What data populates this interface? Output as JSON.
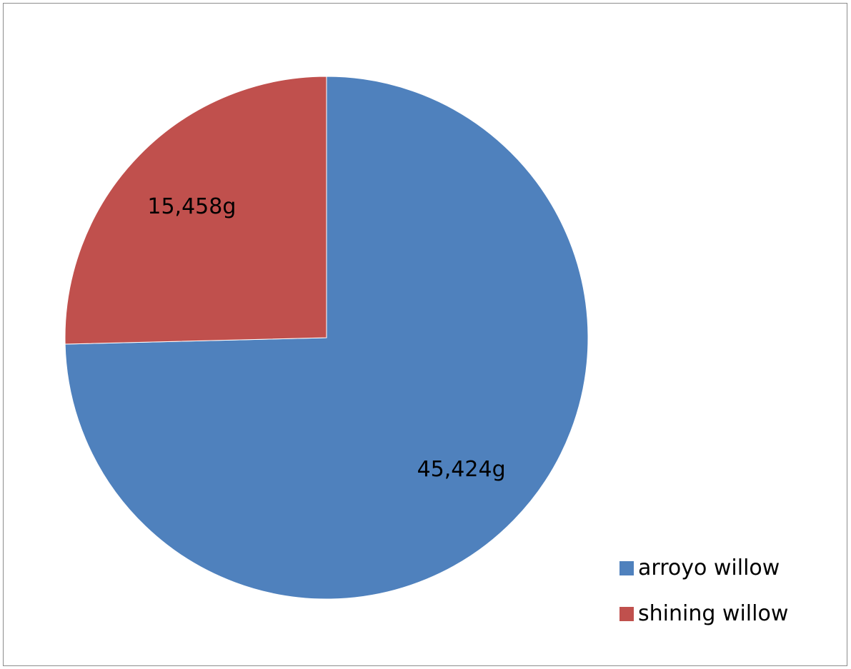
{
  "chart_data": {
    "type": "pie",
    "title": "",
    "categories": [
      "arroyo willow",
      "shining willow"
    ],
    "values": [
      45424,
      15458
    ],
    "data_labels": [
      "45,424g",
      "15,458g"
    ],
    "unit": "g",
    "colors": [
      "#4F81BD",
      "#C0504D"
    ],
    "legend_position": "bottom-right",
    "start_angle_deg": 0,
    "direction": "clockwise"
  }
}
